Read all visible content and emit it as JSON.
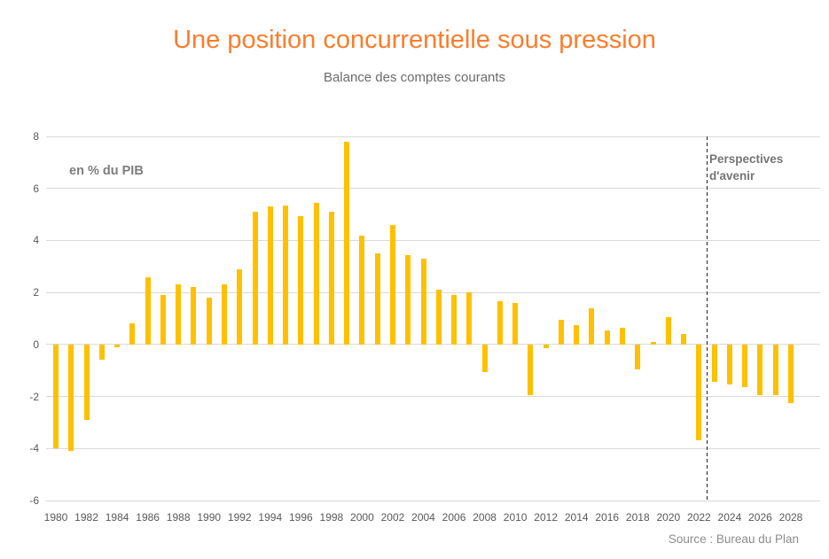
{
  "header": {
    "title": "Une position concurrentielle sous pression",
    "subtitle": "Balance des comptes courants"
  },
  "annotations": {
    "unit": "en % du PIB",
    "forecast_line1": "Perspectives",
    "forecast_line2": "d'avenir"
  },
  "footer": {
    "source": "Source : Bureau du Plan"
  },
  "colors": {
    "bar": "#FFC000",
    "title": "#FA7D2D",
    "grid": "#D9D9D9",
    "axis_text": "#595959",
    "annotation_text": "#7D7D7D",
    "source_text": "#8C8C8C",
    "divider": "#222222"
  },
  "chart_data": {
    "type": "bar",
    "title": "Une position concurrentielle sous pression",
    "subtitle": "Balance des comptes courants",
    "unit_annotation": "en % du PIB",
    "forecast_annotation": "Perspectives d'avenir",
    "source": "Source : Bureau du Plan",
    "x": [
      1980,
      1981,
      1982,
      1983,
      1984,
      1985,
      1986,
      1987,
      1988,
      1989,
      1990,
      1991,
      1992,
      1993,
      1994,
      1995,
      1996,
      1997,
      1998,
      1999,
      2000,
      2001,
      2002,
      2003,
      2004,
      2005,
      2006,
      2007,
      2008,
      2009,
      2010,
      2011,
      2012,
      2013,
      2014,
      2015,
      2016,
      2017,
      2018,
      2019,
      2020,
      2021,
      2022,
      2023,
      2024,
      2025,
      2026,
      2027,
      2028
    ],
    "values": [
      -4.0,
      -4.1,
      -2.9,
      -0.6,
      -0.1,
      0.8,
      2.6,
      1.9,
      2.3,
      2.2,
      1.8,
      2.3,
      2.9,
      5.1,
      5.3,
      5.35,
      4.95,
      5.45,
      5.1,
      7.8,
      4.2,
      3.5,
      4.6,
      3.45,
      3.3,
      2.1,
      1.9,
      2.0,
      -1.05,
      1.65,
      1.6,
      -1.95,
      -0.15,
      0.95,
      0.75,
      1.4,
      0.55,
      0.65,
      -0.95,
      0.1,
      1.05,
      0.4,
      -3.7,
      -1.45,
      -1.55,
      -1.65,
      -1.95,
      -1.95,
      -2.25
    ],
    "ylim": [
      -6,
      8
    ],
    "yticks": [
      8,
      6,
      4,
      2,
      0,
      -2,
      -4,
      -6
    ],
    "xtick_years": [
      1980,
      1982,
      1984,
      1986,
      1988,
      1990,
      1992,
      1994,
      1996,
      1998,
      2000,
      2002,
      2004,
      2006,
      2008,
      2010,
      2012,
      2014,
      2016,
      2018,
      2020,
      2022,
      2024,
      2026,
      2028
    ],
    "grid": "horizontal",
    "legend": "none",
    "forecast_divider_after": 2022
  }
}
